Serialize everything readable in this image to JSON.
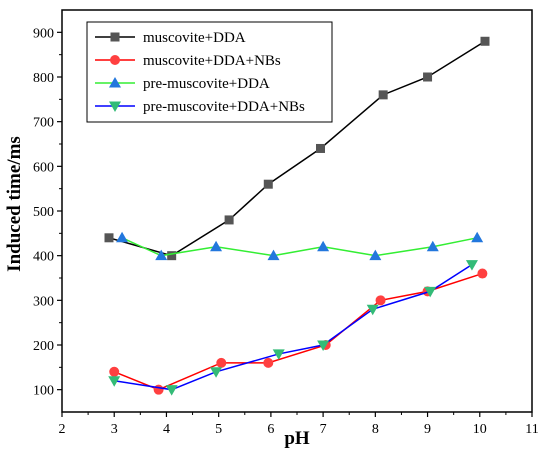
{
  "chart_data": {
    "type": "line",
    "xlabel": "pH",
    "ylabel": "Induced time/ms",
    "xlim": [
      2,
      11
    ],
    "ylim": [
      50,
      950
    ],
    "x_ticks": [
      "2",
      "3",
      "4",
      "5",
      "6",
      "7",
      "8",
      "9",
      "10",
      "11"
    ],
    "y_ticks": [
      "100",
      "200",
      "300",
      "400",
      "500",
      "600",
      "700",
      "800",
      "900"
    ],
    "grid": false,
    "legend_position": "top-left",
    "series": [
      {
        "name": "muscovite+DDA",
        "color": "#000000",
        "marker_color": "#555555",
        "marker": "square",
        "points": [
          [
            2.9,
            440
          ],
          [
            4.1,
            400
          ],
          [
            5.2,
            480
          ],
          [
            5.95,
            560
          ],
          [
            6.95,
            640
          ],
          [
            8.15,
            760
          ],
          [
            9.0,
            800
          ],
          [
            10.1,
            880
          ]
        ]
      },
      {
        "name": "muscovite+DDA+NBs",
        "color": "#ff0000",
        "marker_color": "#ff4040",
        "marker": "circle",
        "points": [
          [
            3.0,
            140
          ],
          [
            3.85,
            100
          ],
          [
            5.05,
            160
          ],
          [
            5.95,
            160
          ],
          [
            7.05,
            200
          ],
          [
            8.1,
            300
          ],
          [
            9.0,
            320
          ],
          [
            10.05,
            360
          ]
        ]
      },
      {
        "name": "pre-muscovite+DDA",
        "color": "#33ee33",
        "marker_color": "#2277dd",
        "marker": "triangle-up",
        "points": [
          [
            3.15,
            440
          ],
          [
            3.9,
            400
          ],
          [
            4.95,
            420
          ],
          [
            6.05,
            400
          ],
          [
            7.0,
            420
          ],
          [
            8.0,
            400
          ],
          [
            9.1,
            420
          ],
          [
            9.95,
            440
          ]
        ]
      },
      {
        "name": "pre-muscovite+DDA+NBs",
        "color": "#0000ff",
        "marker_color": "#33bb77",
        "marker": "triangle-down",
        "points": [
          [
            3.0,
            120
          ],
          [
            4.1,
            100
          ],
          [
            4.95,
            140
          ],
          [
            6.15,
            180
          ],
          [
            7.0,
            200
          ],
          [
            7.95,
            280
          ],
          [
            9.05,
            320
          ],
          [
            9.85,
            380
          ]
        ]
      }
    ]
  }
}
